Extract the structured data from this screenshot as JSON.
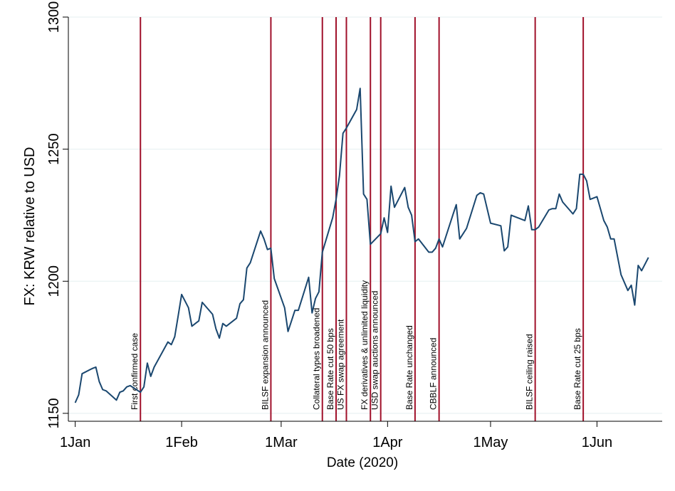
{
  "chart_data": {
    "type": "line",
    "xlabel": "Date (2020)",
    "ylabel": "FX: KRW relative to USD",
    "ylim": [
      1147,
      1300
    ],
    "xlim": [
      "2019-12-30",
      "2020-06-20"
    ],
    "grid": true,
    "colors": {
      "line": "#1a476f",
      "event": "#a0102a",
      "grid": "#eaf2f3",
      "axis": "#000000"
    },
    "y_ticks": [
      {
        "value": 1150,
        "label": "1150"
      },
      {
        "value": 1200,
        "label": "1200"
      },
      {
        "value": 1250,
        "label": "1250"
      },
      {
        "value": 1300,
        "label": "1300"
      }
    ],
    "x_ticks": [
      {
        "date": "2020-01-01",
        "label": "1Jan"
      },
      {
        "date": "2020-02-01",
        "label": "1Feb"
      },
      {
        "date": "2020-03-01",
        "label": "1Mar"
      },
      {
        "date": "2020-04-01",
        "label": "1Apr"
      },
      {
        "date": "2020-05-01",
        "label": "1May"
      },
      {
        "date": "2020-06-01",
        "label": "1Jun"
      }
    ],
    "events": [
      {
        "date": "2020-01-20",
        "label": "First confirmed case"
      },
      {
        "date": "2020-02-27",
        "label": "BILSF expansion announced"
      },
      {
        "date": "2020-03-13",
        "label": "Collateral types broadened"
      },
      {
        "date": "2020-03-17",
        "label": "Base Rate cut 50 bps"
      },
      {
        "date": "2020-03-20",
        "label": "US FX swap agreement"
      },
      {
        "date": "2020-03-27",
        "label": "FX derivatives & unlimited liquidity"
      },
      {
        "date": "2020-03-30",
        "label": "USD swap auctions announced"
      },
      {
        "date": "2020-04-09",
        "label": "Base Rate unchanged"
      },
      {
        "date": "2020-04-16",
        "label": "CBBLF announced"
      },
      {
        "date": "2020-05-14",
        "label": "BILSF ceiling raised"
      },
      {
        "date": "2020-05-28",
        "label": "Base Rate cut 25 bps"
      }
    ],
    "series": [
      {
        "points": [
          [
            "2020-01-01",
            1154
          ],
          [
            "2020-01-02",
            1157
          ],
          [
            "2020-01-03",
            1165
          ],
          [
            "2020-01-06",
            1167
          ],
          [
            "2020-01-07",
            1167.5
          ],
          [
            "2020-01-08",
            1162
          ],
          [
            "2020-01-09",
            1159
          ],
          [
            "2020-01-10",
            1158.5
          ],
          [
            "2020-01-13",
            1155
          ],
          [
            "2020-01-14",
            1158
          ],
          [
            "2020-01-15",
            1158.5
          ],
          [
            "2020-01-16",
            1160
          ],
          [
            "2020-01-17",
            1160.5
          ],
          [
            "2020-01-20",
            1158
          ],
          [
            "2020-01-21",
            1160
          ],
          [
            "2020-01-22",
            1169
          ],
          [
            "2020-01-23",
            1164
          ],
          [
            "2020-01-24",
            1167.5
          ],
          [
            "2020-01-28",
            1177
          ],
          [
            "2020-01-29",
            1176
          ],
          [
            "2020-01-30",
            1179
          ],
          [
            "2020-01-31",
            1187
          ],
          [
            "2020-02-01",
            1195
          ],
          [
            "2020-02-03",
            1190
          ],
          [
            "2020-02-04",
            1183
          ],
          [
            "2020-02-05",
            1184
          ],
          [
            "2020-02-06",
            1185
          ],
          [
            "2020-02-07",
            1192
          ],
          [
            "2020-02-10",
            1187.5
          ],
          [
            "2020-02-11",
            1182
          ],
          [
            "2020-02-12",
            1178.5
          ],
          [
            "2020-02-13",
            1184
          ],
          [
            "2020-02-14",
            1183
          ],
          [
            "2020-02-17",
            1186
          ],
          [
            "2020-02-18",
            1191.5
          ],
          [
            "2020-02-19",
            1193
          ],
          [
            "2020-02-20",
            1205
          ],
          [
            "2020-02-21",
            1207
          ],
          [
            "2020-02-24",
            1219
          ],
          [
            "2020-02-25",
            1216
          ],
          [
            "2020-02-26",
            1212
          ],
          [
            "2020-02-27",
            1212.5
          ],
          [
            "2020-02-28",
            1201
          ],
          [
            "2020-03-02",
            1190
          ],
          [
            "2020-03-03",
            1181
          ],
          [
            "2020-03-04",
            1185
          ],
          [
            "2020-03-05",
            1189
          ],
          [
            "2020-03-06",
            1189
          ],
          [
            "2020-03-09",
            1201.5
          ],
          [
            "2020-03-10",
            1188
          ],
          [
            "2020-03-11",
            1193.5
          ],
          [
            "2020-03-12",
            1196
          ],
          [
            "2020-03-13",
            1211
          ],
          [
            "2020-03-16",
            1224
          ],
          [
            "2020-03-17",
            1231
          ],
          [
            "2020-03-18",
            1240
          ],
          [
            "2020-03-19",
            1256
          ],
          [
            "2020-03-20",
            1258
          ],
          [
            "2020-03-23",
            1265
          ],
          [
            "2020-03-24",
            1273
          ],
          [
            "2020-03-25",
            1233
          ],
          [
            "2020-03-26",
            1231
          ],
          [
            "2020-03-27",
            1214
          ],
          [
            "2020-03-30",
            1218
          ],
          [
            "2020-03-31",
            1224
          ],
          [
            "2020-04-01",
            1218.5
          ],
          [
            "2020-04-02",
            1236
          ],
          [
            "2020-04-03",
            1228
          ],
          [
            "2020-04-06",
            1235.5
          ],
          [
            "2020-04-07",
            1228
          ],
          [
            "2020-04-08",
            1225
          ],
          [
            "2020-04-09",
            1215
          ],
          [
            "2020-04-10",
            1216
          ],
          [
            "2020-04-13",
            1211
          ],
          [
            "2020-04-14",
            1211
          ],
          [
            "2020-04-15",
            1212.5
          ],
          [
            "2020-04-16",
            1216
          ],
          [
            "2020-04-17",
            1213
          ],
          [
            "2020-04-20",
            1225
          ],
          [
            "2020-04-21",
            1229
          ],
          [
            "2020-04-22",
            1216
          ],
          [
            "2020-04-23",
            1218
          ],
          [
            "2020-04-24",
            1220
          ],
          [
            "2020-04-27",
            1232.5
          ],
          [
            "2020-04-28",
            1233.5
          ],
          [
            "2020-04-29",
            1233
          ],
          [
            "2020-05-01",
            1222
          ],
          [
            "2020-05-04",
            1221
          ],
          [
            "2020-05-05",
            1211.5
          ],
          [
            "2020-05-06",
            1213
          ],
          [
            "2020-05-07",
            1225
          ],
          [
            "2020-05-08",
            1224.5
          ],
          [
            "2020-05-11",
            1223
          ],
          [
            "2020-05-12",
            1228.5
          ],
          [
            "2020-05-13",
            1219.5
          ],
          [
            "2020-05-14",
            1219.5
          ],
          [
            "2020-05-15",
            1220.5
          ],
          [
            "2020-05-18",
            1227
          ],
          [
            "2020-05-19",
            1227.5
          ],
          [
            "2020-05-20",
            1227.5
          ],
          [
            "2020-05-21",
            1233
          ],
          [
            "2020-05-22",
            1230
          ],
          [
            "2020-05-25",
            1225.5
          ],
          [
            "2020-05-26",
            1227.5
          ],
          [
            "2020-05-27",
            1240.5
          ],
          [
            "2020-05-28",
            1240.5
          ],
          [
            "2020-05-29",
            1238
          ],
          [
            "2020-05-30",
            1231
          ],
          [
            "2020-06-01",
            1232
          ],
          [
            "2020-06-03",
            1223
          ],
          [
            "2020-06-04",
            1220.5
          ],
          [
            "2020-06-05",
            1216
          ],
          [
            "2020-06-06",
            1216
          ],
          [
            "2020-06-08",
            1202.5
          ],
          [
            "2020-06-10",
            1196.5
          ],
          [
            "2020-06-11",
            1198.5
          ],
          [
            "2020-06-12",
            1191
          ],
          [
            "2020-06-13",
            1206
          ],
          [
            "2020-06-14",
            1204
          ],
          [
            "2020-06-16",
            1209
          ]
        ]
      }
    ]
  }
}
